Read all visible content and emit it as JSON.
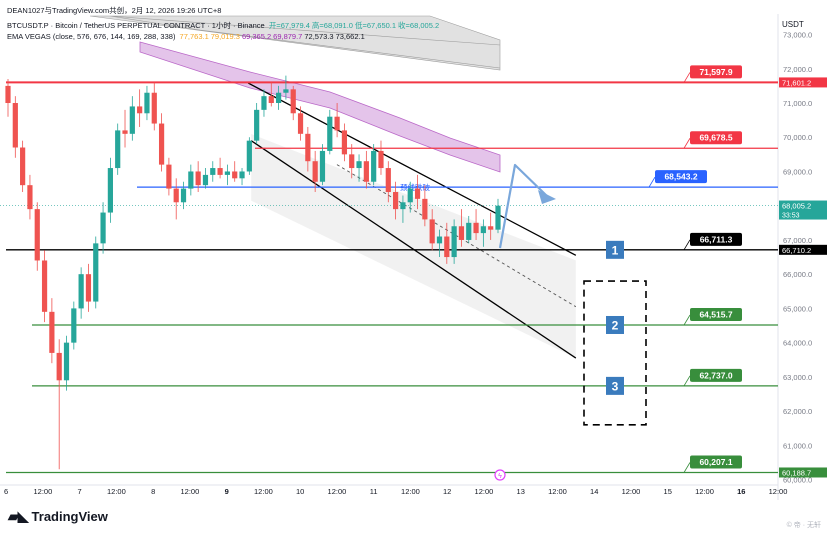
{
  "header": {
    "line1": "DEAN1027与TradingView.com共创，2月 12, 2026 19:26 UTC+8",
    "line2_symbol": "BTCUSDT.P · Bitcoin / TetherUS PERPETUAL CONTRACT · 1小时 · Binance",
    "ohlc": [
      {
        "label": "开",
        "value": "67,979.4"
      },
      {
        "label": "高",
        "value": "68,091.0"
      },
      {
        "label": "低",
        "value": "67,650.1"
      },
      {
        "label": "收",
        "value": "68,005.2"
      }
    ],
    "line3_label": "EMA VEGAS (close, 576, 676, 144, 169, 288, 338)",
    "ema_values": [
      {
        "value": "77,763.1",
        "color": "#f5a623"
      },
      {
        "value": "79,019.3",
        "color": "#f5a623"
      },
      {
        "value": "69,365.2",
        "color": "#9c27b0"
      },
      {
        "value": "69,879.7",
        "color": "#9c27b0"
      },
      {
        "value": "72,573.3",
        "color": "#131722"
      },
      {
        "value": "73,662.1",
        "color": "#131722"
      }
    ]
  },
  "unit_label": "USDT",
  "brand": "TradingView",
  "watermark": "© 帝 · 无轩",
  "colors": {
    "up": "#26a69a",
    "down": "#ef5350",
    "red_line": "#f23645",
    "green_line": "#388e3c",
    "blue_line": "#2962ff",
    "black_line": "#000000",
    "vegas_band": "#ce93d8",
    "arrow": "#7aa7db",
    "box_label": "#3a7bbd"
  },
  "chart_data": {
    "type": "candlestick",
    "x_range": [
      "2026-02-05 22:00",
      "2026-02-16 12:00"
    ],
    "ylim": [
      59900,
      73600
    ],
    "y_ticks": [
      "60,000.0",
      "61,000.0",
      "62,000.0",
      "63,000.0",
      "64,000.0",
      "65,000.0",
      "66,000.0",
      "67,000.0",
      "68,000.0",
      "69,000.0",
      "70,000.0",
      "71,000.0",
      "72,000.0",
      "73,000.0"
    ],
    "x_ticks": [
      {
        "label": "6",
        "t": "2026-02-06 00:00"
      },
      {
        "label": "12:00",
        "t": "2026-02-06 12:00"
      },
      {
        "label": "7",
        "t": "2026-02-07 00:00"
      },
      {
        "label": "12:00",
        "t": "2026-02-07 12:00"
      },
      {
        "label": "8",
        "t": "2026-02-08 00:00"
      },
      {
        "label": "12:00",
        "t": "2026-02-08 12:00"
      },
      {
        "label": "9",
        "t": "2026-02-09 00:00"
      },
      {
        "label": "12:00",
        "t": "2026-02-09 12:00"
      },
      {
        "label": "10",
        "t": "2026-02-10 00:00"
      },
      {
        "label": "12:00",
        "t": "2026-02-10 12:00"
      },
      {
        "label": "11",
        "t": "2026-02-11 00:00"
      },
      {
        "label": "12:00",
        "t": "2026-02-11 12:00"
      },
      {
        "label": "12",
        "t": "2026-02-12 00:00"
      },
      {
        "label": "12:00",
        "t": "2026-02-12 12:00"
      },
      {
        "label": "13",
        "t": "2026-02-13 00:00"
      },
      {
        "label": "12:00",
        "t": "2026-02-13 12:00"
      },
      {
        "label": "14",
        "t": "2026-02-14 00:00"
      },
      {
        "label": "12:00",
        "t": "2026-02-14 12:00"
      },
      {
        "label": "15",
        "t": "2026-02-15 00:00"
      },
      {
        "label": "12:00",
        "t": "2026-02-15 12:00"
      },
      {
        "label": "16",
        "t": "2026-02-16 00:00"
      },
      {
        "label": "12:00",
        "t": "2026-02-16 12:00"
      }
    ],
    "current_price": {
      "value": "68,005.2",
      "countdown": "33:53"
    },
    "levels": [
      {
        "price": 71601.2,
        "label": "71,597.9",
        "axis_label": "71,601.2",
        "color": "#f23645",
        "kind": "red"
      },
      {
        "price": 69678.5,
        "label": "69,678.5",
        "color": "#f23645",
        "kind": "red"
      },
      {
        "price": 68543.2,
        "label": "68,543.2",
        "color": "#2962ff",
        "kind": "blue",
        "note": "颈线跌破"
      },
      {
        "price": 66711.3,
        "label": "66,711.3",
        "axis_label": "66,710.2",
        "color": "#000000",
        "kind": "black",
        "number": "1"
      },
      {
        "price": 64515.7,
        "label": "64,515.7",
        "color": "#388e3c",
        "kind": "green",
        "number": "2"
      },
      {
        "price": 62737.0,
        "label": "62,737.0",
        "color": "#388e3c",
        "kind": "green",
        "number": "3"
      },
      {
        "price": 60207.1,
        "label": "60,207.1",
        "axis_label": "60,188.7",
        "color": "#388e3c",
        "kind": "green"
      }
    ],
    "channel": {
      "upper": [
        {
          "t": "2026-02-09 08:00",
          "p": 71700
        },
        {
          "t": "2026-02-13 18:00",
          "p": 66550
        }
      ],
      "lower": [
        {
          "t": "2026-02-09 08:00",
          "p": 69900
        },
        {
          "t": "2026-02-13 18:00",
          "p": 63550
        }
      ],
      "mid": [
        {
          "t": "2026-02-10 12:00",
          "p": 69200
        },
        {
          "t": "2026-02-13 18:00",
          "p": 65050
        }
      ]
    },
    "candles": [
      [
        0,
        71500,
        71700,
        70600,
        71000
      ],
      [
        1,
        71000,
        71200,
        69400,
        69700
      ],
      [
        2,
        69700,
        69900,
        68400,
        68600
      ],
      [
        3,
        68600,
        68900,
        67600,
        67900
      ],
      [
        4,
        67900,
        68100,
        66100,
        66400
      ],
      [
        5,
        66400,
        66700,
        64600,
        64900
      ],
      [
        6,
        64900,
        65300,
        63400,
        63700
      ],
      [
        7,
        63700,
        64100,
        60300,
        62900
      ],
      [
        8,
        62900,
        64200,
        62600,
        64000
      ],
      [
        9,
        64000,
        65200,
        63800,
        65000
      ],
      [
        10,
        65000,
        66200,
        64700,
        66000
      ],
      [
        11,
        66000,
        66300,
        64900,
        65200
      ],
      [
        12,
        65200,
        67100,
        65000,
        66900
      ],
      [
        13,
        66900,
        68100,
        66600,
        67800
      ],
      [
        14,
        67800,
        69400,
        67500,
        69100
      ],
      [
        15,
        69100,
        70400,
        68900,
        70200
      ],
      [
        16,
        70200,
        70800,
        69700,
        70100
      ],
      [
        17,
        70100,
        71200,
        69900,
        70900
      ],
      [
        18,
        70900,
        71400,
        70300,
        70700
      ],
      [
        19,
        70700,
        71500,
        70500,
        71300
      ],
      [
        20,
        71300,
        71600,
        70200,
        70400
      ],
      [
        21,
        70400,
        70700,
        69000,
        69200
      ],
      [
        22,
        69200,
        69400,
        68300,
        68500
      ],
      [
        23,
        68500,
        68800,
        67600,
        68100
      ],
      [
        24,
        68100,
        68700,
        67900,
        68500
      ],
      [
        25,
        68500,
        69200,
        68300,
        69000
      ],
      [
        26,
        69000,
        69300,
        68400,
        68600
      ],
      [
        27,
        68600,
        69100,
        68500,
        68900
      ],
      [
        28,
        68900,
        69300,
        68700,
        69100
      ],
      [
        29,
        69100,
        69400,
        68800,
        68900
      ],
      [
        30,
        68900,
        69200,
        68600,
        69000
      ],
      [
        31,
        69000,
        69300,
        68700,
        68800
      ],
      [
        32,
        68800,
        69100,
        68600,
        69000
      ],
      [
        33,
        69000,
        70000,
        68900,
        69900
      ],
      [
        34,
        69900,
        71000,
        69800,
        70800
      ],
      [
        35,
        70800,
        71400,
        70600,
        71200
      ],
      [
        36,
        71200,
        71600,
        70900,
        71000
      ],
      [
        37,
        71000,
        71500,
        70800,
        71300
      ],
      [
        38,
        71300,
        71800,
        71100,
        71400
      ],
      [
        39,
        71400,
        71500,
        70500,
        70700
      ],
      [
        40,
        70700,
        70900,
        69900,
        70100
      ],
      [
        41,
        70100,
        70300,
        69000,
        69300
      ],
      [
        42,
        69300,
        69600,
        68400,
        68700
      ],
      [
        43,
        68700,
        69800,
        68600,
        69600
      ],
      [
        44,
        69600,
        70800,
        69500,
        70600
      ],
      [
        45,
        70600,
        71000,
        70000,
        70200
      ],
      [
        46,
        70200,
        70400,
        69300,
        69500
      ],
      [
        47,
        69500,
        69800,
        68800,
        69100
      ],
      [
        48,
        69100,
        69500,
        68700,
        69300
      ],
      [
        49,
        69300,
        69600,
        68500,
        68700
      ],
      [
        50,
        68700,
        69800,
        68600,
        69600
      ],
      [
        51,
        69600,
        69900,
        68900,
        69100
      ],
      [
        52,
        69100,
        69300,
        68100,
        68400
      ],
      [
        53,
        68400,
        68700,
        67600,
        67900
      ],
      [
        54,
        67900,
        68300,
        67500,
        68100
      ],
      [
        55,
        68100,
        68700,
        67800,
        68500
      ],
      [
        56,
        68500,
        68900,
        67900,
        68200
      ],
      [
        57,
        68200,
        68600,
        67400,
        67600
      ],
      [
        58,
        67600,
        67900,
        66700,
        66900
      ],
      [
        59,
        66900,
        67300,
        66500,
        67100
      ],
      [
        60,
        67100,
        67500,
        66300,
        66500
      ],
      [
        61,
        66500,
        67600,
        66300,
        67400
      ],
      [
        62,
        67400,
        67900,
        66800,
        67000
      ],
      [
        63,
        67000,
        67700,
        66900,
        67500
      ],
      [
        64,
        67500,
        67900,
        67000,
        67200
      ],
      [
        65,
        67200,
        67600,
        66800,
        67400
      ],
      [
        66,
        67400,
        67800,
        67000,
        67300
      ],
      [
        67,
        67300,
        68200,
        67200,
        68000
      ]
    ]
  }
}
